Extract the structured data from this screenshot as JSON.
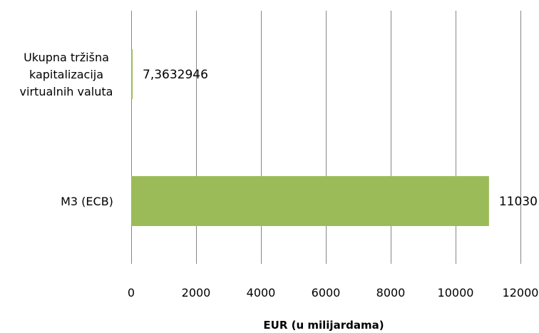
{
  "chart_data": {
    "type": "bar",
    "orientation": "horizontal",
    "categories": [
      [
        "Ukupna tržišna",
        "kapitalizacija",
        "virtualnih valuta"
      ],
      [
        "M3 (ECB)"
      ]
    ],
    "values": [
      7.3632946,
      11030
    ],
    "data_labels": [
      "7,3632946",
      "11030"
    ],
    "xlabel": "EUR (u milijardama)",
    "ylabel": "",
    "xlim": [
      0,
      12000
    ],
    "xticks": [
      0,
      2000,
      4000,
      6000,
      8000,
      10000,
      12000
    ],
    "xtick_labels": [
      "0",
      "2000",
      "4000",
      "6000",
      "8000",
      "10000",
      "12000"
    ],
    "grid": "vertical",
    "legend": "none",
    "colors": {
      "bar": "#9bbb59",
      "grid": "#868686",
      "text": "#000000"
    }
  }
}
